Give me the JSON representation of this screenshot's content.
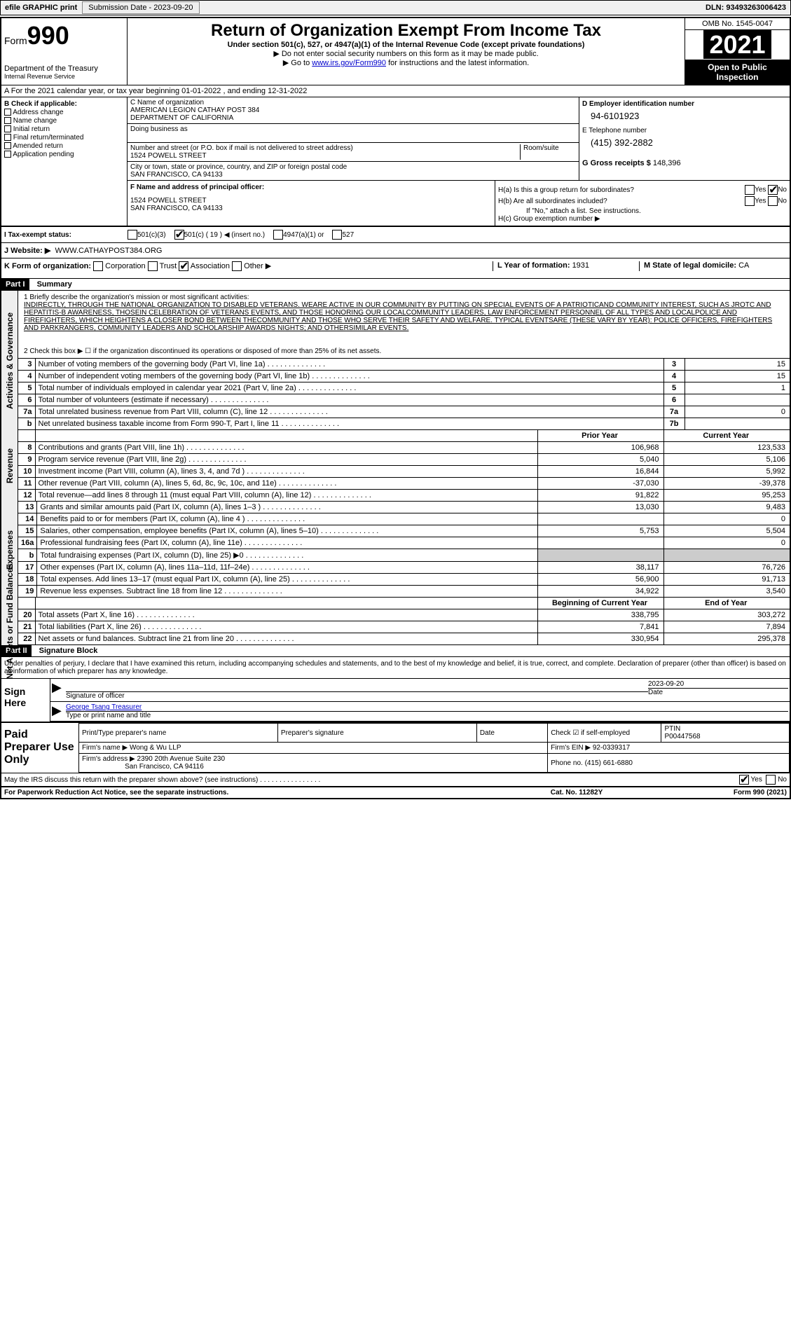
{
  "topbar": {
    "efile": "efile GRAPHIC print",
    "submission_label": "Submission Date - 2023-09-20",
    "dln": "DLN: 93493263006423"
  },
  "header": {
    "form_prefix": "Form",
    "form_num": "990",
    "dept": "Department of the Treasury",
    "irs": "Internal Revenue Service",
    "title": "Return of Organization Exempt From Income Tax",
    "sub1": "Under section 501(c), 527, or 4947(a)(1) of the Internal Revenue Code (except private foundations)",
    "sub2": "▶ Do not enter social security numbers on this form as it may be made public.",
    "sub3_pre": "▶ Go to ",
    "sub3_link": "www.irs.gov/Form990",
    "sub3_post": " for instructions and the latest information.",
    "omb": "OMB No. 1545-0047",
    "year": "2021",
    "open": "Open to Public Inspection"
  },
  "row_a": "A For the 2021 calendar year, or tax year beginning 01-01-2022   , and ending 12-31-2022",
  "col_b": {
    "head": "B Check if applicable:",
    "items": [
      "Address change",
      "Name change",
      "Initial return",
      "Final return/terminated",
      "Amended return",
      "Application pending"
    ]
  },
  "col_c": {
    "name_label": "C Name of organization",
    "name1": "AMERICAN LEGION CATHAY POST 384",
    "name2": "DEPARTMENT OF CALIFORNIA",
    "dba_label": "Doing business as",
    "addr_label": "Number and street (or P.O. box if mail is not delivered to street address)",
    "room_label": "Room/suite",
    "addr": "1524 POWELL STREET",
    "city_label": "City or town, state or province, country, and ZIP or foreign postal code",
    "city": "SAN FRANCISCO, CA  94133"
  },
  "col_d": {
    "label": "D Employer identification number",
    "ein": "94-6101923",
    "e_label": "E Telephone number",
    "phone": "(415) 392-2882",
    "g_label": "G Gross receipts $",
    "gross": "148,396"
  },
  "col_f": {
    "label": "F  Name and address of principal officer:",
    "addr1": "1524 POWELL STREET",
    "addr2": "SAN FRANCISCO, CA  94133"
  },
  "col_h": {
    "ha": "H(a)  Is this a group return for subordinates?",
    "hb": "H(b)  Are all subordinates included?",
    "hb_note": "If \"No,\" attach a list. See instructions.",
    "hc": "H(c)  Group exemption number ▶",
    "yes": "Yes",
    "no": "No"
  },
  "row_i": {
    "label": "I  Tax-exempt status:",
    "opts": [
      "501(c)(3)",
      "501(c) ( 19 ) ◀ (insert no.)",
      "4947(a)(1) or",
      "527"
    ]
  },
  "row_j": {
    "label": "J  Website: ▶",
    "val": "WWW.CATHAYPOST384.ORG"
  },
  "row_k": {
    "label": "K Form of organization:",
    "opts": [
      "Corporation",
      "Trust",
      "Association",
      "Other ▶"
    ],
    "l_label": "L Year of formation: ",
    "l_val": "1931",
    "m_label": "M State of legal domicile: ",
    "m_val": "CA"
  },
  "part1": {
    "num": "Part I",
    "title": "Summary",
    "tabs": [
      "Activities & Governance",
      "Revenue",
      "Expenses",
      "Net Assets or Fund Balances"
    ],
    "line1_label": "1  Briefly describe the organization's mission or most significant activities:",
    "mission": "INDIRECTLY, THROUGH THE NATIONAL ORGANIZATION TO DISABLED VETERANS. WEARE ACTIVE IN OUR COMMUNITY BY PUTTING ON SPECIAL EVENTS OF A PATRIOTICAND COMMUNITY INTEREST, SUCH AS JROTC AND HEPATITIS-B AWARENESS, THOSEIN CELEBRATION OF VETERANS EVENTS, AND THOSE HONORING OUR LOCALCOMMUNITY LEADERS, LAW ENFORCEMENT PERSONNEL OF ALL TYPES AND LOCALPOLICE AND FIREFIGHTERS, WHICH HEIGHTENS A CLOSER BOND BETWEEN THECOMMUNITY AND THOSE WHO SERVE THEIR SAFETY AND WELFARE. TYPICAL EVENTSARE (THESE VARY BY YEAR): POLICE OFFICERS, FIREFIGHTERS AND PARKRANGERS, COMMUNITY LEADERS AND SCHOLARSHIP AWARDS NIGHTS; AND OTHERSIMILAR EVENTS.",
    "line2": "2  Check this box ▶ ☐  if the organization discontinued its operations or disposed of more than 25% of its net assets.",
    "rows_box": [
      {
        "n": "3",
        "label": "Number of voting members of the governing body (Part VI, line 1a)",
        "box": "3",
        "val": "15"
      },
      {
        "n": "4",
        "label": "Number of independent voting members of the governing body (Part VI, line 1b)",
        "box": "4",
        "val": "15"
      },
      {
        "n": "5",
        "label": "Total number of individuals employed in calendar year 2021 (Part V, line 2a)",
        "box": "5",
        "val": "1"
      },
      {
        "n": "6",
        "label": "Total number of volunteers (estimate if necessary)",
        "box": "6",
        "val": ""
      },
      {
        "n": "7a",
        "label": "Total unrelated business revenue from Part VIII, column (C), line 12",
        "box": "7a",
        "val": "0"
      },
      {
        "n": "b",
        "label": "Net unrelated business taxable income from Form 990-T, Part I, line 11",
        "box": "7b",
        "val": ""
      }
    ],
    "hdr_prior": "Prior Year",
    "hdr_current": "Current Year",
    "rows_rev": [
      {
        "n": "8",
        "label": "Contributions and grants (Part VIII, line 1h)",
        "p": "106,968",
        "c": "123,533"
      },
      {
        "n": "9",
        "label": "Program service revenue (Part VIII, line 2g)",
        "p": "5,040",
        "c": "5,106"
      },
      {
        "n": "10",
        "label": "Investment income (Part VIII, column (A), lines 3, 4, and 7d )",
        "p": "16,844",
        "c": "5,992"
      },
      {
        "n": "11",
        "label": "Other revenue (Part VIII, column (A), lines 5, 6d, 8c, 9c, 10c, and 11e)",
        "p": "-37,030",
        "c": "-39,378"
      },
      {
        "n": "12",
        "label": "Total revenue—add lines 8 through 11 (must equal Part VIII, column (A), line 12)",
        "p": "91,822",
        "c": "95,253"
      }
    ],
    "rows_exp": [
      {
        "n": "13",
        "label": "Grants and similar amounts paid (Part IX, column (A), lines 1–3 )",
        "p": "13,030",
        "c": "9,483"
      },
      {
        "n": "14",
        "label": "Benefits paid to or for members (Part IX, column (A), line 4 )",
        "p": "",
        "c": "0"
      },
      {
        "n": "15",
        "label": "Salaries, other compensation, employee benefits (Part IX, column (A), lines 5–10)",
        "p": "5,753",
        "c": "5,504"
      },
      {
        "n": "16a",
        "label": "Professional fundraising fees (Part IX, column (A), line 11e)",
        "p": "",
        "c": "0"
      },
      {
        "n": "b",
        "label": "Total fundraising expenses (Part IX, column (D), line 25) ▶0",
        "p": "",
        "c": "",
        "shade": true
      },
      {
        "n": "17",
        "label": "Other expenses (Part IX, column (A), lines 11a–11d, 11f–24e)",
        "p": "38,117",
        "c": "76,726"
      },
      {
        "n": "18",
        "label": "Total expenses. Add lines 13–17 (must equal Part IX, column (A), line 25)",
        "p": "56,900",
        "c": "91,713"
      },
      {
        "n": "19",
        "label": "Revenue less expenses. Subtract line 18 from line 12",
        "p": "34,922",
        "c": "3,540"
      }
    ],
    "hdr_begin": "Beginning of Current Year",
    "hdr_end": "End of Year",
    "rows_net": [
      {
        "n": "20",
        "label": "Total assets (Part X, line 16)",
        "p": "338,795",
        "c": "303,272"
      },
      {
        "n": "21",
        "label": "Total liabilities (Part X, line 26)",
        "p": "7,841",
        "c": "7,894"
      },
      {
        "n": "22",
        "label": "Net assets or fund balances. Subtract line 21 from line 20",
        "p": "330,954",
        "c": "295,378"
      }
    ]
  },
  "part2": {
    "num": "Part II",
    "title": "Signature Block",
    "decl": "Under penalties of perjury, I declare that I have examined this return, including accompanying schedules and statements, and to the best of my knowledge and belief, it is true, correct, and complete. Declaration of preparer (other than officer) is based on all information of which preparer has any knowledge.",
    "sign_here": "Sign Here",
    "sig_label": "Signature of officer",
    "date_label": "Date",
    "sig_date": "2023-09-20",
    "name_label": "Type or print name and title",
    "name_val": "George Tsang Treasurer",
    "paid": "Paid Preparer Use Only",
    "prep_name_label": "Print/Type preparer's name",
    "prep_sig_label": "Preparer's signature",
    "prep_date_label": "Date",
    "check_label": "Check ☑ if self-employed",
    "ptin_label": "PTIN",
    "ptin": "P00447568",
    "firm_name_label": "Firm's name    ▶",
    "firm_name": "Wong & Wu LLP",
    "firm_ein_label": "Firm's EIN ▶",
    "firm_ein": "92-0339317",
    "firm_addr_label": "Firm's address ▶",
    "firm_addr1": "2390 20th Avenue Suite 230",
    "firm_addr2": "San Francisco, CA  94116",
    "firm_phone_label": "Phone no.",
    "firm_phone": "(415) 661-6880",
    "discuss": "May the IRS discuss this return with the preparer shown above? (see instructions)"
  },
  "footer": {
    "notice": "For Paperwork Reduction Act Notice, see the separate instructions.",
    "cat": "Cat. No. 11282Y",
    "form": "Form 990 (2021)"
  }
}
